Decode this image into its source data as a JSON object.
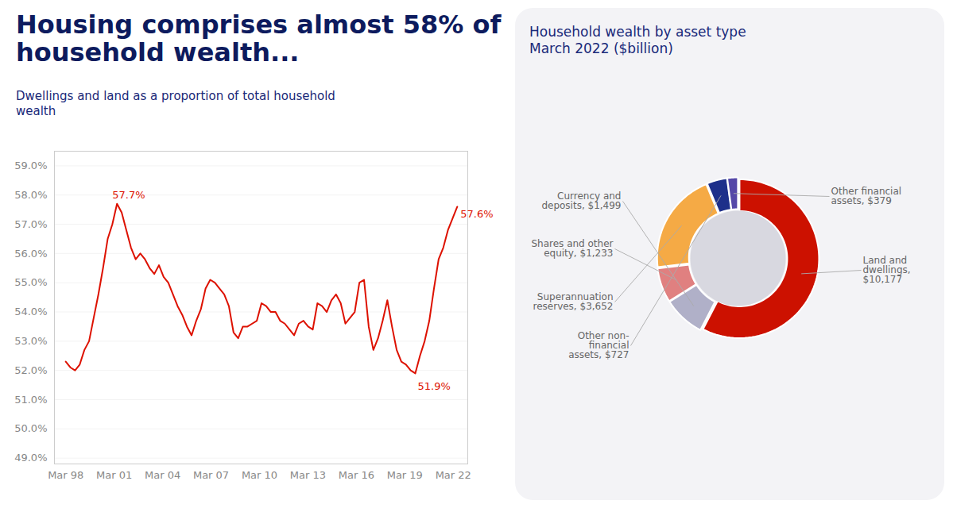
{
  "chart_data": [
    {
      "type": "line",
      "title": "Housing comprises almost 58% of\nhousehold wealth...",
      "subtitle": "Dwellings and land as a proportion of total household\nwealth",
      "x": [
        1998,
        1998.2887,
        1998.5774,
        1998.8661,
        1999.1548,
        1999.4435,
        1999.7321,
        2000.0208,
        2000.3095,
        2000.5982,
        2000.8869,
        2001.1756,
        2001.4643,
        2001.753,
        2002.0417,
        2002.3304,
        2002.619,
        2002.9077,
        2003.1964,
        2003.4851,
        2003.7738,
        2004.0625,
        2004.3512,
        2004.6399,
        2004.9286,
        2005.2173,
        2005.506,
        2005.7946,
        2006.0833,
        2006.372,
        2006.6607,
        2006.9494,
        2007.2381,
        2007.5268,
        2007.8155,
        2008.1042,
        2008.3929,
        2008.6815,
        2008.9702,
        2009.2589,
        2009.5476,
        2009.8363,
        2010.125,
        2010.4137,
        2010.7024,
        2010.9911,
        2011.2798,
        2011.5685,
        2011.8571,
        2012.1458,
        2012.4345,
        2012.7232,
        2013.0119,
        2013.3006,
        2013.5893,
        2013.878,
        2014.1667,
        2014.4554,
        2014.744,
        2015.0327,
        2015.3214,
        2015.6101,
        2015.8988,
        2016.1875,
        2016.4762,
        2016.7649,
        2017.0536,
        2017.3423,
        2017.631,
        2017.9196,
        2018.2083,
        2018.497,
        2018.7857,
        2019.0744,
        2019.3631,
        2019.6518,
        2019.9405,
        2020.2292,
        2020.5179,
        2020.8065,
        2021.0952,
        2021.3839,
        2021.6726,
        2021.9613,
        2022.25
      ],
      "values": [
        52.3,
        52.1,
        52.0,
        52.2,
        52.7,
        53.0,
        53.8,
        54.6,
        55.5,
        56.5,
        57.0,
        57.7,
        57.4,
        56.8,
        56.2,
        55.8,
        56.0,
        55.8,
        55.5,
        55.3,
        55.6,
        55.2,
        55.0,
        54.6,
        54.2,
        53.9,
        53.5,
        53.2,
        53.7,
        54.1,
        54.8,
        55.1,
        55.0,
        54.8,
        54.6,
        54.2,
        53.3,
        53.1,
        53.5,
        53.5,
        53.6,
        53.7,
        54.3,
        54.2,
        54.0,
        54.0,
        53.7,
        53.6,
        53.4,
        53.2,
        53.6,
        53.7,
        53.5,
        53.4,
        54.3,
        54.2,
        54.0,
        54.4,
        54.6,
        54.3,
        53.6,
        53.8,
        54.0,
        55.0,
        55.1,
        53.5,
        52.7,
        53.1,
        53.7,
        54.4,
        53.5,
        52.7,
        52.3,
        52.2,
        52.0,
        51.9,
        52.5,
        53.0,
        53.7,
        54.8,
        55.8,
        56.2,
        56.8,
        57.2,
        57.6
      ],
      "color": "#dd1100",
      "xlim": [
        1997.3,
        2022.9
      ],
      "ylim": [
        48.8,
        59.5
      ],
      "xticks": [
        {
          "value": 1998,
          "label": "Mar 98"
        },
        {
          "value": 2001,
          "label": "Mar 01"
        },
        {
          "value": 2004,
          "label": "Mar 04"
        },
        {
          "value": 2007,
          "label": "Mar 07"
        },
        {
          "value": 2010,
          "label": "Mar 10"
        },
        {
          "value": 2013,
          "label": "Mar 13"
        },
        {
          "value": 2016,
          "label": "Mar 16"
        },
        {
          "value": 2019,
          "label": "Mar 19"
        },
        {
          "value": 2022,
          "label": "Mar 22"
        }
      ],
      "yticks": [
        {
          "value": 49.0,
          "label": "49.0%"
        },
        {
          "value": 50.0,
          "label": "50.0%"
        },
        {
          "value": 51.0,
          "label": "51.0%"
        },
        {
          "value": 52.0,
          "label": "52.0%"
        },
        {
          "value": 53.0,
          "label": "53.0%"
        },
        {
          "value": 54.0,
          "label": "54.0%"
        },
        {
          "value": 55.0,
          "label": "55.0%"
        },
        {
          "value": 56.0,
          "label": "56.0%"
        },
        {
          "value": 57.0,
          "label": "57.0%"
        },
        {
          "value": 58.0,
          "label": "58.0%"
        },
        {
          "value": 59.0,
          "label": "59.0%"
        }
      ],
      "grid": true,
      "annotations": [
        {
          "text": "57.7%",
          "x": 2001.1756,
          "y": 57.7
        },
        {
          "text": "51.9%",
          "x": 2019.6518,
          "y": 51.9
        },
        {
          "text": "57.6%",
          "x": 2022.25,
          "y": 57.6
        }
      ]
    },
    {
      "type": "donut",
      "title": "Household wealth by asset type\nMarch 2022 ($billion)",
      "categories": [
        "Land and\ndwellings,\n$10,177",
        "Currency and\ndeposits, $1,499",
        "Shares and other\nequity, $1,233",
        "Superannuation\nreserves, $3,652",
        "Other non-\nfinancial\nassets, $727",
        "Other financial\nassets, $379"
      ],
      "values": [
        10177,
        1499,
        1233,
        3652,
        727,
        379
      ],
      "colors": [
        "#cc1100",
        "#b0b0c8",
        "#e08080",
        "#f5aa45",
        "#1e2f8a",
        "#5548a8"
      ]
    }
  ]
}
